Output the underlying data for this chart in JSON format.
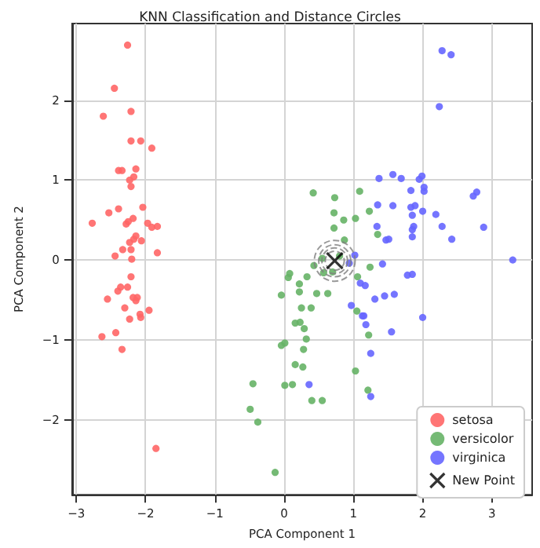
{
  "chart_data": {
    "type": "scatter",
    "title": "KNN Classification and Distance Circles",
    "xlabel": "PCA Component 1",
    "ylabel": "PCA Component 2",
    "xlim": [
      -3.06,
      3.58
    ],
    "ylim": [
      -2.94,
      2.96
    ],
    "xticks": [
      -3,
      -2,
      -1,
      0,
      1,
      2,
      3
    ],
    "yticks": [
      -2,
      -1,
      0,
      1,
      2
    ],
    "grid": true,
    "legend": "bottom right",
    "marker": "circle",
    "series": [
      {
        "name": "setosa",
        "color": "#ff6666",
        "x": [
          -2.26,
          -2.45,
          -2.61,
          -2.21,
          -2.21,
          -2.07,
          -1.91,
          -2.39,
          -2.34,
          -2.14,
          -2.17,
          -2.23,
          -2.21,
          -2.04,
          -2.39,
          -2.53,
          -2.77,
          -2.18,
          -2.25,
          -2.28,
          -1.97,
          -1.91,
          -1.83,
          -2.06,
          -2.23,
          -2.14,
          -2.17,
          -2.33,
          -2.21,
          -2.44,
          -1.83,
          -2.2,
          -2.21,
          -2.36,
          -2.26,
          -2.4,
          -2.55,
          -2.18,
          -2.12,
          -2.14,
          -2.3,
          -1.95,
          -2.08,
          -2.07,
          -2.23,
          -2.43,
          -2.63,
          -2.34,
          -1.85
        ],
        "values": [
          2.69,
          2.15,
          1.8,
          1.86,
          1.49,
          1.49,
          1.4,
          1.12,
          1.12,
          1.14,
          1.04,
          1.0,
          0.92,
          0.66,
          0.64,
          0.59,
          0.46,
          0.52,
          0.48,
          0.45,
          0.46,
          0.41,
          0.42,
          0.24,
          0.22,
          0.3,
          0.26,
          0.13,
          0.13,
          0.05,
          0.09,
          0.01,
          -0.21,
          -0.34,
          -0.34,
          -0.39,
          -0.49,
          -0.47,
          -0.47,
          -0.51,
          -0.6,
          -0.63,
          -0.68,
          -0.72,
          -0.74,
          -0.91,
          -0.96,
          -1.12,
          -2.36
        ]
      },
      {
        "name": "versicolor",
        "color": "#66b366",
        "x": [
          0.08,
          0.06,
          0.33,
          0.22,
          0.22,
          -0.04,
          0.25,
          0.16,
          0.23,
          0.29,
          0.32,
          -0.04,
          0.01,
          0.28,
          0.16,
          0.27,
          0.01,
          0.12,
          -0.45,
          -0.49,
          -0.38,
          -0.13,
          0.43,
          0.47,
          0.63,
          0.39,
          1.06,
          1.24,
          1.05,
          1.22,
          1.03,
          0.4,
          0.55,
          1.21,
          0.42,
          0.73,
          1.09,
          0.72,
          1.23,
          0.86,
          1.03,
          0.72,
          1.35,
          0.87,
          0.57,
          0.55,
          0.8,
          0.7
        ],
        "values": [
          -0.17,
          -0.22,
          -0.21,
          -0.3,
          -0.4,
          -0.44,
          -0.6,
          -0.79,
          -0.78,
          -0.86,
          -0.99,
          -1.07,
          -1.04,
          -1.12,
          -1.31,
          -1.34,
          -1.57,
          -1.56,
          -1.55,
          -1.87,
          -2.03,
          -2.66,
          -0.07,
          -0.42,
          -0.42,
          -0.6,
          -0.21,
          -0.09,
          -0.64,
          -0.94,
          -1.39,
          -1.76,
          -1.76,
          -1.63,
          0.84,
          0.78,
          0.86,
          0.59,
          0.61,
          0.5,
          0.52,
          0.4,
          0.32,
          0.25,
          -0.16,
          0.02,
          0.05,
          -0.15
        ]
      },
      {
        "name": "virginica",
        "color": "#6666ff",
        "x": [
          0.36,
          0.97,
          1.1,
          1.17,
          1.13,
          1.15,
          1.18,
          1.31,
          1.45,
          1.59,
          1.78,
          1.85,
          2.0,
          1.55,
          1.25,
          1.25,
          1.42,
          3.3,
          2.28,
          2.41,
          2.24,
          1.37,
          1.57,
          1.69,
          1.95,
          1.99,
          1.83,
          2.02,
          2.02,
          2.73,
          2.78,
          1.35,
          1.57,
          1.83,
          1.89,
          2.0,
          2.19,
          1.85,
          1.34,
          1.87,
          1.85,
          2.28,
          2.88,
          1.47,
          1.51,
          1.85,
          2.42,
          1.02,
          0.94
        ],
        "values": [
          -1.56,
          -0.57,
          -0.29,
          -0.32,
          -0.7,
          -0.7,
          -0.81,
          -0.49,
          -0.45,
          -0.43,
          -0.19,
          -0.18,
          -0.72,
          -0.9,
          -1.17,
          -1.71,
          -0.05,
          0.0,
          2.62,
          2.57,
          1.92,
          1.02,
          1.07,
          1.02,
          1.01,
          1.05,
          0.87,
          0.91,
          0.86,
          0.8,
          0.85,
          0.69,
          0.68,
          0.66,
          0.68,
          0.61,
          0.57,
          0.56,
          0.42,
          0.42,
          0.38,
          0.42,
          0.41,
          0.25,
          0.26,
          0.29,
          0.26,
          0.06,
          -0.04
        ]
      },
      {
        "type": "bubble",
        "color": "#808080",
        "line_style": "dashed",
        "x": [
          0.73,
          0.73,
          0.73,
          0.73
        ],
        "values": [
          -0.01,
          -0.01,
          -0.01,
          -0.01
        ],
        "sizes": [
          1,
          0.62,
          0.4,
          0.22
        ]
      },
      {
        "name": "New Point",
        "color": "#000000",
        "marker": "cross",
        "x": [
          0.73
        ],
        "values": [
          -0.01
        ]
      }
    ]
  }
}
